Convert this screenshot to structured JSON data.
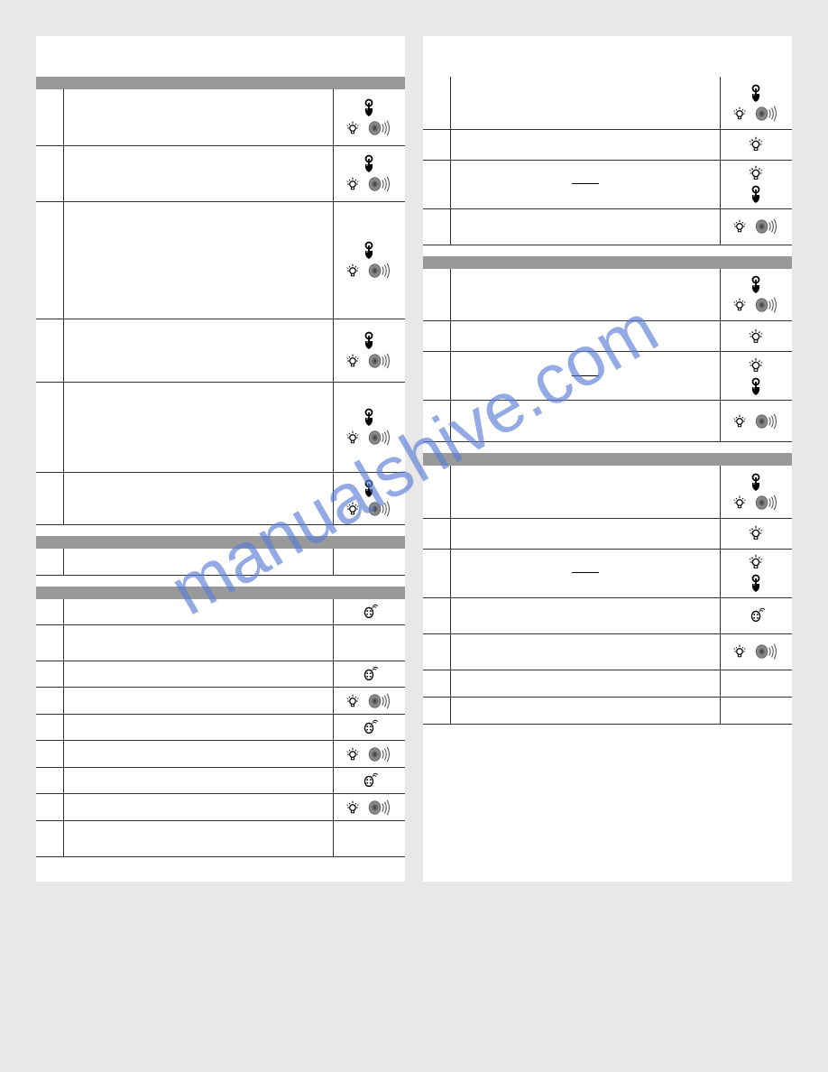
{
  "watermark": "manualshive.com",
  "colors": {
    "page_bg": "#e8e8e8",
    "card_bg": "#ffffff",
    "header_bg": "#999999",
    "border": "#333333",
    "watermark": "#5b7dd6"
  },
  "icons": {
    "press": "press-icon",
    "light": "light-icon",
    "sound": "sound-icon",
    "remote": "remote-icon"
  },
  "leftColumn": {
    "sections": [
      {
        "hasHeader": true,
        "rows": [
          {
            "num": "",
            "desc": "",
            "icons": [
              "press",
              "light-sound"
            ],
            "height": 62
          },
          {
            "num": "",
            "desc": "",
            "icons": [
              "press",
              "light-sound"
            ],
            "height": 62
          },
          {
            "num": "",
            "desc": "",
            "icons": [
              "press",
              "light-sound"
            ],
            "height": 130
          },
          {
            "num": "",
            "desc": "",
            "icons": [
              "press",
              "light-sound"
            ],
            "height": 70
          },
          {
            "num": "",
            "desc": "",
            "icons": [
              "press",
              "light-sound"
            ],
            "height": 100
          },
          {
            "num": "",
            "desc": "",
            "icons": [
              "press",
              "light-sound"
            ],
            "height": 58
          }
        ]
      },
      {
        "hasHeader": true,
        "rows": [
          {
            "num": "",
            "desc": "",
            "icons": [],
            "height": 30
          }
        ]
      },
      {
        "hasHeader": true,
        "rows": [
          {
            "num": "",
            "desc": "",
            "icons": [
              "remote"
            ],
            "height": 28
          },
          {
            "num": "",
            "desc": "",
            "icons": [],
            "height": 40
          },
          {
            "num": "",
            "desc": "",
            "icons": [
              "remote"
            ],
            "height": 28
          },
          {
            "num": "",
            "desc": "",
            "icons": [
              "light-sound"
            ],
            "height": 30
          },
          {
            "num": "",
            "desc": "",
            "icons": [
              "remote"
            ],
            "height": 28
          },
          {
            "num": "",
            "desc": "",
            "icons": [
              "light-sound"
            ],
            "height": 30
          },
          {
            "num": "",
            "desc": "",
            "icons": [
              "remote"
            ],
            "height": 28
          },
          {
            "num": "",
            "desc": "",
            "icons": [
              "light-sound"
            ],
            "height": 30
          },
          {
            "num": "",
            "desc": "",
            "icons": [],
            "height": 40
          }
        ]
      }
    ]
  },
  "rightColumn": {
    "sections": [
      {
        "hasHeader": false,
        "rows": [
          {
            "num": "",
            "desc": "",
            "icons": [
              "press",
              "light-sound"
            ],
            "height": 58
          },
          {
            "num": "",
            "desc": "",
            "icons": [
              "light"
            ],
            "height": 34
          },
          {
            "num": "",
            "desc": "dash",
            "icons": [
              "light",
              "press"
            ],
            "height": 54
          },
          {
            "num": "",
            "desc": "",
            "icons": [
              "light-sound"
            ],
            "height": 40
          }
        ]
      },
      {
        "hasHeader": true,
        "rows": [
          {
            "num": "",
            "desc": "",
            "icons": [
              "press",
              "light-sound"
            ],
            "height": 58
          },
          {
            "num": "",
            "desc": "",
            "icons": [
              "light"
            ],
            "height": 34
          },
          {
            "num": "",
            "desc": "dash",
            "icons": [
              "light",
              "press"
            ],
            "height": 54
          },
          {
            "num": "",
            "desc": "",
            "icons": [
              "light-sound"
            ],
            "height": 46
          }
        ]
      },
      {
        "hasHeader": true,
        "rows": [
          {
            "num": "",
            "desc": "",
            "icons": [
              "press",
              "light-sound"
            ],
            "height": 58
          },
          {
            "num": "",
            "desc": "",
            "icons": [
              "light"
            ],
            "height": 34
          },
          {
            "num": "",
            "desc": "dash",
            "icons": [
              "light",
              "press"
            ],
            "height": 54
          },
          {
            "num": "",
            "desc": "",
            "icons": [
              "remote"
            ],
            "height": 40
          },
          {
            "num": "",
            "desc": "",
            "icons": [
              "light-sound"
            ],
            "height": 40
          },
          {
            "num": "",
            "desc": "",
            "icons": [],
            "height": 30
          },
          {
            "num": "",
            "desc": "",
            "icons": [],
            "height": 30
          }
        ]
      }
    ]
  }
}
